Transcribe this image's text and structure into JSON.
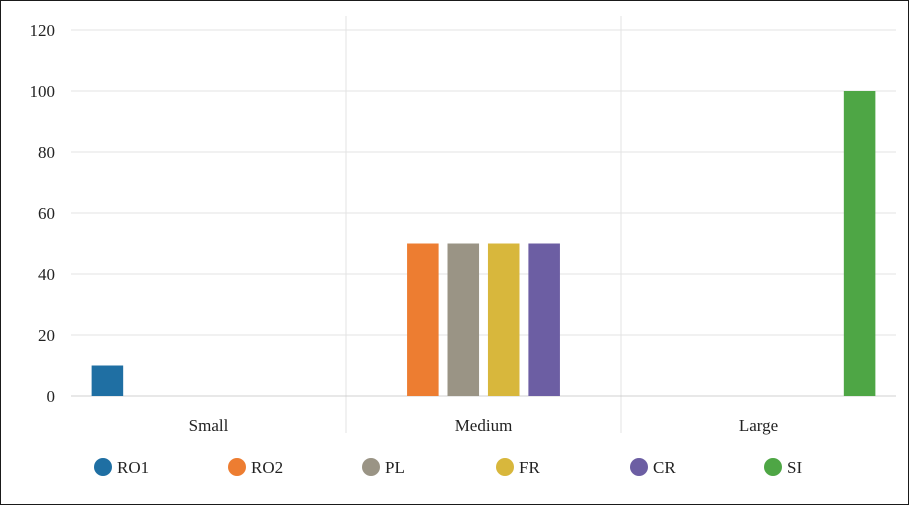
{
  "chart_data": {
    "type": "bar",
    "title": "",
    "xlabel": "",
    "ylabel": "",
    "ylim": [
      0,
      120
    ],
    "yticks": [
      0,
      20,
      40,
      60,
      80,
      100,
      120
    ],
    "grid": true,
    "legend_position": "bottom",
    "categories": [
      "Small",
      "Medium",
      "Large"
    ],
    "series": [
      {
        "name": "RO1",
        "color": "#1f6fa3",
        "values": [
          10,
          0,
          0
        ]
      },
      {
        "name": "RO2",
        "color": "#ed7d31",
        "values": [
          0,
          50,
          0
        ]
      },
      {
        "name": "PL",
        "color": "#9a9485",
        "values": [
          0,
          50,
          0
        ]
      },
      {
        "name": "FR",
        "color": "#d8b73c",
        "values": [
          0,
          50,
          0
        ]
      },
      {
        "name": "CR",
        "color": "#6c5ea3",
        "values": [
          0,
          50,
          0
        ]
      },
      {
        "name": "SI",
        "color": "#4ea645",
        "values": [
          0,
          0,
          100
        ]
      }
    ]
  }
}
